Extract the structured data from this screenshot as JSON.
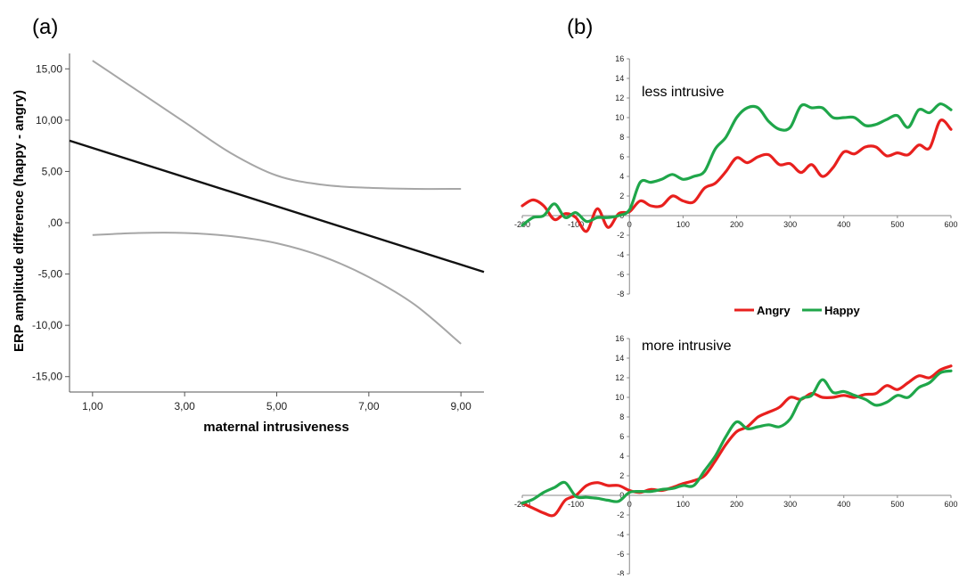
{
  "chart_data": [
    {
      "panel_label": "(a)",
      "type": "line",
      "xlabel": "maternal intrusiveness",
      "ylabel": "ERP amplitude difference (happy - angry)",
      "xlim": [
        0.5,
        9.5
      ],
      "ylim": [
        -16.5,
        16.5
      ],
      "xticks": [
        1,
        3,
        5,
        7,
        9
      ],
      "xtick_labels": [
        "1,00",
        "3,00",
        "5,00",
        "7,00",
        "9,00"
      ],
      "yticks": [
        15,
        10,
        5,
        0,
        -5,
        -10,
        -15
      ],
      "ytick_labels": [
        "15,00",
        "10,00",
        "5,00",
        ",00",
        "-5,00",
        "-10,00",
        "-15,00"
      ],
      "series": [
        {
          "role": "fit",
          "color": "#111111",
          "x": [
            0.5,
            9.5
          ],
          "y": [
            8.0,
            -4.8
          ]
        },
        {
          "role": "upper-ci",
          "color": "#a6a6a6",
          "x": [
            1,
            2,
            3,
            4,
            5,
            6,
            7,
            8,
            9
          ],
          "y": [
            15.8,
            12.8,
            9.8,
            6.8,
            4.6,
            3.7,
            3.4,
            3.3,
            3.3
          ]
        },
        {
          "role": "lower-ci",
          "color": "#a6a6a6",
          "x": [
            1,
            2,
            3,
            4,
            5,
            6,
            7,
            8,
            9
          ],
          "y": [
            -1.2,
            -1.0,
            -1.0,
            -1.3,
            -2.0,
            -3.3,
            -5.3,
            -8.0,
            -11.8
          ]
        }
      ]
    },
    {
      "panel_label": "(b)",
      "type": "line",
      "title": "less intrusive",
      "xlim": [
        -200,
        600
      ],
      "ylim": [
        -8,
        16
      ],
      "xticks": [
        -200,
        -100,
        0,
        100,
        200,
        300,
        400,
        500,
        600
      ],
      "yticks": [
        16,
        14,
        12,
        10,
        8,
        6,
        4,
        2,
        0,
        -2,
        -4,
        -6,
        -8
      ],
      "x": [
        -200,
        -180,
        -160,
        -140,
        -120,
        -100,
        -80,
        -60,
        -40,
        -20,
        0,
        20,
        40,
        60,
        80,
        100,
        120,
        140,
        160,
        180,
        200,
        220,
        240,
        260,
        280,
        300,
        320,
        340,
        360,
        380,
        400,
        420,
        440,
        460,
        480,
        500,
        520,
        540,
        560,
        580,
        600
      ],
      "series": [
        {
          "name": "Angry",
          "color": "#e8201e",
          "values": [
            1.0,
            1.6,
            1.0,
            -0.4,
            0.2,
            -0.2,
            -1.6,
            0.7,
            -1.2,
            0.2,
            0.4,
            1.5,
            1.0,
            1.0,
            2.0,
            1.5,
            1.4,
            2.8,
            3.3,
            4.5,
            5.9,
            5.4,
            6.0,
            6.2,
            5.2,
            5.3,
            4.4,
            5.2,
            4.0,
            4.9,
            6.5,
            6.3,
            7.0,
            7.0,
            6.1,
            6.4,
            6.2,
            7.2,
            6.9,
            9.7,
            8.8
          ]
        },
        {
          "name": "Happy",
          "color": "#1fa64a",
          "values": [
            -1.0,
            -0.2,
            0.0,
            1.2,
            -0.2,
            0.3,
            -0.6,
            -0.2,
            -0.2,
            0.0,
            0.6,
            3.4,
            3.4,
            3.7,
            4.2,
            3.7,
            4.0,
            4.5,
            6.8,
            8.0,
            10.0,
            11.0,
            11.0,
            9.6,
            8.8,
            9.0,
            11.2,
            11.0,
            11.0,
            10.0,
            10.0,
            10.0,
            9.2,
            9.3,
            9.8,
            10.2,
            9.0,
            10.8,
            10.5,
            11.4,
            10.8
          ]
        }
      ]
    },
    {
      "type": "line",
      "title": "more intrusive",
      "xlim": [
        -200,
        600
      ],
      "ylim": [
        -8,
        16
      ],
      "xticks": [
        -200,
        -100,
        0,
        100,
        200,
        300,
        400,
        500,
        600
      ],
      "yticks": [
        16,
        14,
        12,
        10,
        8,
        6,
        4,
        2,
        0,
        -2,
        -4,
        -6,
        -8
      ],
      "x": [
        -200,
        -180,
        -160,
        -140,
        -120,
        -100,
        -80,
        -60,
        -40,
        -20,
        0,
        20,
        40,
        60,
        80,
        100,
        120,
        140,
        160,
        180,
        200,
        220,
        240,
        260,
        280,
        300,
        320,
        340,
        360,
        380,
        400,
        420,
        440,
        460,
        480,
        500,
        520,
        540,
        560,
        580,
        600
      ],
      "series": [
        {
          "name": "Angry",
          "color": "#e8201e",
          "values": [
            -0.8,
            -1.3,
            -1.8,
            -2.0,
            -0.5,
            0.0,
            1.0,
            1.3,
            1.0,
            1.0,
            0.5,
            0.3,
            0.6,
            0.5,
            0.8,
            1.2,
            1.5,
            2.0,
            3.5,
            5.2,
            6.5,
            7.0,
            8.0,
            8.5,
            9.0,
            10.0,
            9.8,
            10.4,
            10.0,
            10.0,
            10.2,
            10.0,
            10.3,
            10.4,
            11.2,
            10.8,
            11.5,
            12.2,
            12.0,
            12.8,
            13.2
          ]
        },
        {
          "name": "Happy",
          "color": "#1fa64a",
          "values": [
            -0.8,
            -0.4,
            0.3,
            0.8,
            1.3,
            -0.1,
            -0.2,
            -0.3,
            -0.5,
            -0.6,
            0.3,
            0.4,
            0.4,
            0.6,
            0.7,
            1.0,
            1.0,
            2.5,
            4.0,
            6.0,
            7.5,
            6.8,
            7.0,
            7.2,
            7.0,
            7.8,
            9.8,
            10.2,
            11.8,
            10.5,
            10.6,
            10.2,
            9.8,
            9.2,
            9.5,
            10.2,
            10.0,
            11.0,
            11.5,
            12.5,
            12.7
          ]
        }
      ]
    }
  ]
}
